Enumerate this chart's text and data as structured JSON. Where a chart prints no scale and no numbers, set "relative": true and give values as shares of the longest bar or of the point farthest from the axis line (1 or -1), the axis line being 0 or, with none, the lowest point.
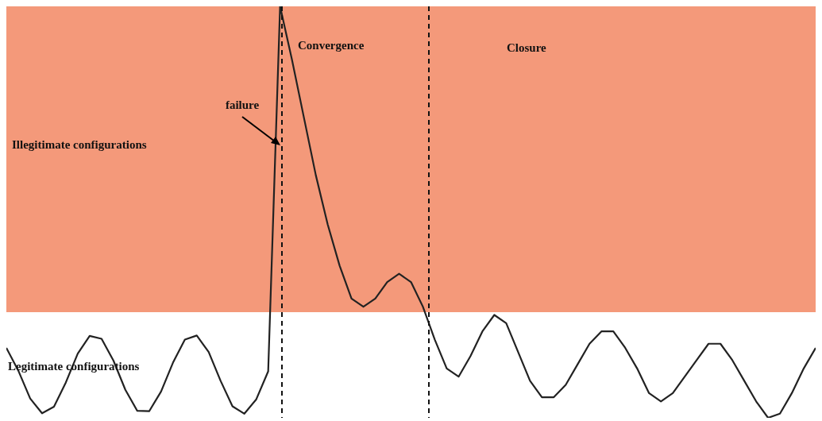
{
  "chart_data": {
    "type": "line",
    "relative": true,
    "marker": "none",
    "line_style": "solid",
    "categories": [
      null,
      null,
      null,
      null,
      null,
      null,
      null,
      null,
      null,
      null,
      null,
      null,
      null,
      null,
      null,
      null,
      null,
      null,
      null,
      null,
      null,
      null,
      null,
      null,
      null,
      null,
      null,
      null,
      null,
      null,
      null,
      null,
      null,
      null,
      null,
      null,
      null,
      null,
      null,
      null,
      null,
      null,
      null,
      null,
      null,
      null,
      null,
      null,
      null,
      null,
      null,
      null,
      null,
      null,
      null,
      null,
      null,
      null,
      null,
      null,
      null,
      null,
      null,
      null,
      null,
      null,
      null,
      null,
      null
    ],
    "series": [
      {
        "color": "#222222",
        "values": [
          0.17,
          0.115,
          0.047,
          0.011,
          0.027,
          0.086,
          0.156,
          0.199,
          0.192,
          0.139,
          0.068,
          0.017,
          0.016,
          0.064,
          0.134,
          0.19,
          0.2,
          0.16,
          0.09,
          0.028,
          0.01,
          0.045,
          0.113,
          1.0,
          0.87,
          0.73,
          0.59,
          0.47,
          0.37,
          0.29,
          0.27,
          0.29,
          0.33,
          0.35,
          0.33,
          0.27,
          0.19,
          0.12,
          0.1,
          0.15,
          0.21,
          0.25,
          0.23,
          0.16,
          0.09,
          0.05,
          0.05,
          0.08,
          0.13,
          0.18,
          0.21,
          0.21,
          0.17,
          0.12,
          0.06,
          0.04,
          0.06,
          0.1,
          0.14,
          0.18,
          0.18,
          0.14,
          0.09,
          0.04,
          0.0,
          0.01,
          0.06,
          0.12,
          0.17
        ]
      }
    ],
    "annotations": [
      "Convergence",
      "Closure",
      "failure",
      "Illegitimate configurations",
      "Legitimate configurations"
    ]
  }
}
